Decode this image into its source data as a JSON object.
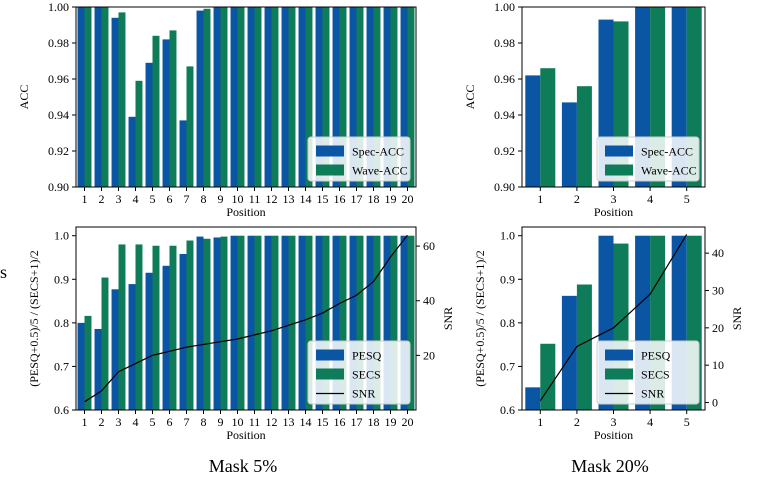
{
  "edge_text": "s.",
  "captions": {
    "left": "Mask 5%",
    "right": "Mask 20%"
  },
  "colors": {
    "blue": "#0b56a4",
    "green": "#0e7c58",
    "line": "#000000"
  },
  "chart_data": [
    {
      "id": "acc_mask5",
      "type": "bar",
      "xlabel": "Position",
      "ylabel": "ACC",
      "categories": [
        "1",
        "2",
        "3",
        "4",
        "5",
        "6",
        "7",
        "8",
        "9",
        "10",
        "11",
        "12",
        "13",
        "14",
        "15",
        "16",
        "17",
        "18",
        "19",
        "20"
      ],
      "series": [
        {
          "name": "Spec-ACC",
          "color": "blue",
          "values": [
            1.0,
            1.0,
            0.994,
            0.939,
            0.969,
            0.982,
            0.937,
            0.998,
            1.0,
            1.0,
            1.0,
            1.0,
            1.0,
            1.0,
            1.0,
            1.0,
            1.0,
            1.0,
            1.0,
            1.0
          ]
        },
        {
          "name": "Wave-ACC",
          "color": "green",
          "values": [
            1.0,
            1.0,
            0.997,
            0.959,
            0.984,
            0.987,
            0.967,
            0.999,
            1.0,
            1.0,
            1.0,
            1.0,
            1.0,
            1.0,
            1.0,
            1.0,
            1.0,
            1.0,
            1.0,
            1.0
          ]
        }
      ],
      "ylim": [
        0.9,
        1.0
      ],
      "yticks": [
        "0.90",
        "0.92",
        "0.94",
        "0.96",
        "0.98",
        "1.00"
      ],
      "legend": "bottom-right"
    },
    {
      "id": "acc_mask20",
      "type": "bar",
      "xlabel": "Position",
      "ylabel": "ACC",
      "categories": [
        "1",
        "2",
        "3",
        "4",
        "5"
      ],
      "series": [
        {
          "name": "Spec-ACC",
          "color": "blue",
          "values": [
            0.962,
            0.947,
            0.993,
            1.0,
            1.0
          ]
        },
        {
          "name": "Wave-ACC",
          "color": "green",
          "values": [
            0.966,
            0.956,
            0.992,
            1.0,
            1.0
          ]
        }
      ],
      "ylim": [
        0.9,
        1.0
      ],
      "yticks": [
        "0.90",
        "0.92",
        "0.94",
        "0.96",
        "0.98",
        "1.00"
      ],
      "legend": "bottom-right"
    },
    {
      "id": "quality_mask5",
      "type": "bar",
      "xlabel": "Position",
      "ylabel": "(PESQ+0.5)/5 / (SECS+1)/2",
      "ylabel2": "SNR",
      "categories": [
        "1",
        "2",
        "3",
        "4",
        "5",
        "6",
        "7",
        "8",
        "9",
        "10",
        "11",
        "12",
        "13",
        "14",
        "15",
        "16",
        "17",
        "18",
        "19",
        "20"
      ],
      "series": [
        {
          "name": "PESQ",
          "color": "blue",
          "values": [
            0.8,
            0.786,
            0.877,
            0.889,
            0.915,
            0.931,
            0.958,
            0.998,
            0.996,
            1.0,
            1.0,
            1.0,
            1.0,
            1.0,
            1.0,
            1.0,
            1.0,
            1.0,
            1.0,
            1.0
          ]
        },
        {
          "name": "SECS",
          "color": "green",
          "values": [
            0.816,
            0.904,
            0.98,
            0.98,
            0.977,
            0.977,
            0.989,
            0.993,
            0.998,
            1.0,
            1.0,
            1.0,
            1.0,
            1.0,
            1.0,
            1.0,
            1.0,
            1.0,
            1.0,
            1.0
          ]
        },
        {
          "name": "SNR",
          "color": "line",
          "type": "line",
          "axis": "right",
          "values": [
            3,
            7,
            14,
            17,
            20,
            21.5,
            23,
            24,
            25,
            26,
            27.5,
            29,
            31,
            33,
            35.5,
            39,
            42,
            47,
            56,
            64
          ]
        }
      ],
      "ylim": [
        0.6,
        1.02
      ],
      "yticks": [
        "0.6",
        "0.7",
        "0.8",
        "0.9",
        "1.0"
      ],
      "y2lim": [
        0,
        67
      ],
      "y2ticks": [
        "20",
        "40",
        "60"
      ],
      "legend": "bottom-right"
    },
    {
      "id": "quality_mask20",
      "type": "bar",
      "xlabel": "Position",
      "ylabel": "(PESQ+0.5)/5 / (SECS+1)/2",
      "ylabel2": "SNR",
      "categories": [
        "1",
        "2",
        "3",
        "4",
        "5"
      ],
      "series": [
        {
          "name": "PESQ",
          "color": "blue",
          "values": [
            0.652,
            0.862,
            1.0,
            1.0,
            1.0
          ]
        },
        {
          "name": "SECS",
          "color": "green",
          "values": [
            0.752,
            0.888,
            0.982,
            1.0,
            1.0
          ]
        },
        {
          "name": "SNR",
          "color": "line",
          "type": "line",
          "axis": "right",
          "values": [
            0.5,
            15,
            20,
            29,
            45
          ]
        }
      ],
      "ylim": [
        0.6,
        1.02
      ],
      "yticks": [
        "0.6",
        "0.7",
        "0.8",
        "0.9",
        "1.0"
      ],
      "y2lim": [
        -2,
        47
      ],
      "y2ticks": [
        "0",
        "10",
        "20",
        "30",
        "40"
      ],
      "legend": "bottom-right"
    }
  ]
}
